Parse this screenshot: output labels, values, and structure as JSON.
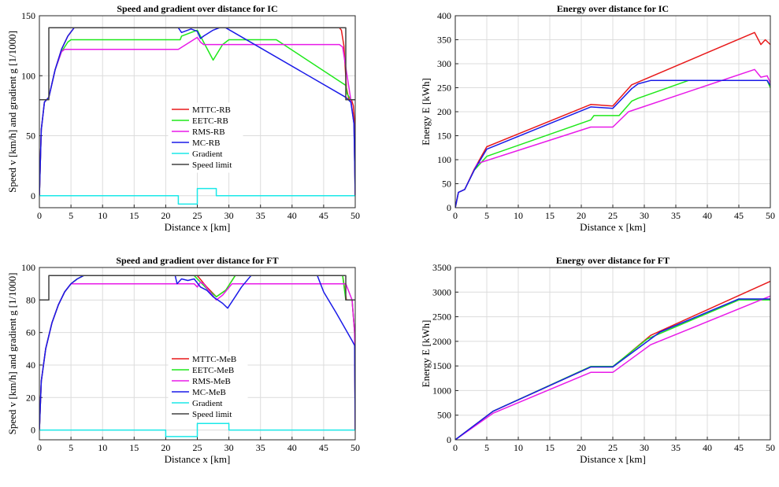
{
  "chart_data": [
    {
      "id": "ic-speed",
      "type": "line",
      "title": "Speed and gradient over distance for IC",
      "xlabel": "Distance x [km]",
      "ylabel": "Speed v [km/h] and gradient g [1/1000]",
      "xlim": [
        0,
        50
      ],
      "ylim": [
        -10,
        150
      ],
      "xticks": [
        "0",
        "5",
        "10",
        "15",
        "20",
        "25",
        "30",
        "35",
        "40",
        "45",
        "50"
      ],
      "yticks": [
        "0",
        "50",
        "100",
        "150"
      ],
      "grid": true,
      "legend": "center",
      "series": [
        {
          "name": "MTTC-RB",
          "color": "#e8191a",
          "x": [
            0,
            0.3,
            0.8,
            1.5,
            2.5,
            3.5,
            4.5,
            5.5,
            47.5,
            47.8,
            48.2,
            48.6,
            49,
            49.4,
            49.7,
            49.9,
            50
          ],
          "y": [
            0,
            55,
            78,
            82,
            105,
            122,
            133,
            140,
            140,
            138,
            125,
            90,
            80,
            80,
            75,
            60,
            0
          ]
        },
        {
          "name": "EETC-RB",
          "color": "#1ee81a",
          "x": [
            0,
            0.3,
            0.8,
            1.5,
            2.5,
            3.5,
            4.5,
            5,
            22.3,
            22.5,
            25,
            26,
            27.5,
            29,
            30,
            37.5,
            48.5,
            48.7,
            49.3,
            49.8,
            50
          ],
          "y": [
            0,
            55,
            78,
            82,
            105,
            120,
            128,
            130,
            130,
            133,
            138,
            128,
            113,
            126,
            130,
            130,
            92,
            85,
            80,
            60,
            0
          ]
        },
        {
          "name": "RMS-RB",
          "color": "#e81ae8",
          "x": [
            0,
            0.3,
            0.8,
            1.5,
            2.5,
            3.5,
            4,
            22,
            25,
            25.5,
            26,
            47.5,
            48,
            49.3,
            49.8,
            50
          ],
          "y": [
            0,
            55,
            78,
            82,
            105,
            120,
            122,
            122,
            132,
            128,
            126,
            126,
            124,
            80,
            60,
            0
          ]
        },
        {
          "name": "MC-RB",
          "color": "#1a1ae8",
          "x": [
            0,
            0.3,
            0.8,
            1.5,
            2.5,
            3.5,
            4.5,
            5.5,
            22,
            22.5,
            24,
            25,
            25.5,
            26,
            27.5,
            28.5,
            29.5,
            48.5,
            49.3,
            49.8,
            50
          ],
          "y": [
            0,
            55,
            78,
            82,
            105,
            122,
            133,
            140,
            140,
            136,
            139,
            137,
            131,
            133,
            138,
            140,
            140,
            82,
            78,
            60,
            0
          ]
        },
        {
          "name": "Gradient",
          "color": "#1ae8e8",
          "x": [
            0,
            22,
            22,
            25,
            25,
            28,
            28,
            50
          ],
          "y": [
            0,
            0,
            -7,
            -7,
            6,
            6,
            0,
            0
          ]
        },
        {
          "name": "Speed limit",
          "color": "#404040",
          "x": [
            0,
            1.5,
            1.5,
            48.5,
            48.5,
            50
          ],
          "y": [
            80,
            80,
            140,
            140,
            80,
            80
          ]
        }
      ]
    },
    {
      "id": "ic-energy",
      "type": "line",
      "title": "Energy over distance for IC",
      "xlabel": "Distance x [km]",
      "ylabel": "Energy E [kWh]",
      "xlim": [
        0,
        50
      ],
      "ylim": [
        0,
        400
      ],
      "xticks": [
        "0",
        "5",
        "10",
        "15",
        "20",
        "25",
        "30",
        "35",
        "40",
        "45",
        "50"
      ],
      "yticks": [
        "0",
        "50",
        "100",
        "150",
        "200",
        "250",
        "300",
        "350",
        "400"
      ],
      "grid": true,
      "series": [
        {
          "name": "MTTC-RB",
          "color": "#e8191a",
          "x": [
            0,
            0.5,
            1.5,
            3,
            5,
            21.5,
            25,
            28,
            47.5,
            48.5,
            49.2,
            50
          ],
          "y": [
            0,
            32,
            38,
            80,
            127,
            215,
            212,
            256,
            365,
            340,
            350,
            340
          ]
        },
        {
          "name": "EETC-RB",
          "color": "#1ee81a",
          "x": [
            0,
            0.5,
            1.5,
            3,
            5,
            21.5,
            22,
            26,
            28,
            29,
            37,
            49.5,
            50
          ],
          "y": [
            0,
            32,
            38,
            78,
            107,
            183,
            192,
            192,
            222,
            228,
            265,
            265,
            250
          ]
        },
        {
          "name": "RMS-RB",
          "color": "#e81ae8",
          "x": [
            0,
            0.5,
            1.5,
            3.5,
            21.5,
            25,
            27.5,
            47.5,
            48.5,
            49.5,
            50
          ],
          "y": [
            0,
            32,
            38,
            92,
            168,
            168,
            200,
            288,
            272,
            275,
            260
          ]
        },
        {
          "name": "MC-RB",
          "color": "#1a1ae8",
          "x": [
            0,
            0.5,
            1.5,
            3,
            5,
            21.5,
            25,
            28,
            29,
            31,
            49.5,
            50
          ],
          "y": [
            0,
            32,
            38,
            78,
            122,
            210,
            207,
            248,
            258,
            265,
            265,
            255
          ]
        }
      ]
    },
    {
      "id": "ft-speed",
      "type": "line",
      "title": "Speed and gradient over distance for FT",
      "xlabel": "Distance x [km]",
      "ylabel": "Speed v [km/h] and gradient g [1/1000]",
      "xlim": [
        0,
        50
      ],
      "ylim": [
        -6,
        100
      ],
      "xticks": [
        "0",
        "5",
        "10",
        "15",
        "20",
        "25",
        "30",
        "35",
        "40",
        "45",
        "50"
      ],
      "yticks": [
        "0",
        "20",
        "40",
        "60",
        "80",
        "100"
      ],
      "grid": true,
      "legend": "center",
      "series": [
        {
          "name": "MTTC-MeB",
          "color": "#e8191a",
          "x": [
            0,
            0.3,
            1,
            2,
            3,
            4,
            5,
            6,
            7,
            25,
            26.5,
            28,
            29.5,
            31,
            48,
            48.6,
            49.5,
            49.9,
            50
          ],
          "y": [
            0,
            30,
            50,
            66,
            77,
            85,
            90,
            93,
            95,
            95,
            88,
            82,
            86,
            95,
            95,
            80,
            80,
            60,
            0
          ]
        },
        {
          "name": "EETC-MeB",
          "color": "#1ee81a",
          "x": [
            0,
            0.3,
            1,
            2,
            3,
            4,
            5,
            6,
            7,
            24.5,
            26.5,
            28,
            29.5,
            31,
            48,
            48.5,
            49.5,
            49.9,
            50
          ],
          "y": [
            0,
            30,
            50,
            66,
            77,
            85,
            90,
            93,
            95,
            95,
            87,
            82,
            86,
            95,
            95,
            80,
            80,
            60,
            0
          ]
        },
        {
          "name": "RMS-MeB",
          "color": "#e81ae8",
          "x": [
            0,
            0.3,
            1,
            2,
            3,
            4,
            5,
            6,
            20,
            24.5,
            25,
            25.5,
            26,
            27,
            28,
            29,
            30.5,
            47.5,
            48.5,
            49.5,
            49.9,
            50
          ],
          "y": [
            0,
            30,
            50,
            66,
            77,
            85,
            90,
            90,
            90,
            90,
            88,
            91,
            90,
            85,
            80,
            83,
            90,
            90,
            90,
            80,
            60,
            0
          ]
        },
        {
          "name": "MC-MeB",
          "color": "#1a1ae8",
          "x": [
            0,
            0.3,
            1,
            2,
            3,
            4,
            5,
            6,
            7,
            21.5,
            21.8,
            22.5,
            23.5,
            24.5,
            25.5,
            26.5,
            27.5,
            29,
            29.8,
            31,
            32,
            33.5,
            44,
            45,
            47,
            49.5,
            49.9,
            50
          ],
          "y": [
            0,
            30,
            50,
            66,
            77,
            85,
            90,
            93,
            95,
            95,
            90,
            93,
            92,
            93,
            88,
            86,
            82,
            78,
            75,
            82,
            88,
            95,
            95,
            85,
            72,
            55,
            52,
            0
          ]
        },
        {
          "name": "Gradient",
          "color": "#1ae8e8",
          "x": [
            0,
            20,
            20,
            25,
            25,
            30,
            30,
            50
          ],
          "y": [
            0,
            0,
            -4,
            -4,
            4,
            4,
            0,
            0
          ]
        },
        {
          "name": "Speed limit",
          "color": "#404040",
          "x": [
            0,
            1.5,
            1.5,
            48.5,
            48.5,
            50
          ],
          "y": [
            80,
            80,
            95,
            95,
            80,
            80
          ]
        }
      ]
    },
    {
      "id": "ft-energy",
      "type": "line",
      "title": "Energy over distance for FT",
      "xlabel": "Distance x [km]",
      "ylabel": "Energy E [kWh]",
      "xlim": [
        0,
        50
      ],
      "ylim": [
        0,
        3500
      ],
      "xticks": [
        "0",
        "5",
        "10",
        "15",
        "20",
        "25",
        "30",
        "35",
        "40",
        "45",
        "50"
      ],
      "yticks": [
        "0",
        "500",
        "1000",
        "1500",
        "2000",
        "2500",
        "3000",
        "3500"
      ],
      "grid": true,
      "series": [
        {
          "name": "MTTC-MeB",
          "color": "#e8191a",
          "x": [
            0,
            6,
            21.5,
            25,
            31,
            50
          ],
          "y": [
            0,
            580,
            1480,
            1480,
            2120,
            3220
          ]
        },
        {
          "name": "EETC-MeB",
          "color": "#1ee81a",
          "x": [
            0,
            6,
            21.5,
            25,
            30.5,
            45,
            50
          ],
          "y": [
            0,
            580,
            1490,
            1490,
            2050,
            2840,
            2840
          ]
        },
        {
          "name": "RMS-MeB",
          "color": "#e81ae8",
          "x": [
            0,
            6,
            21.5,
            25,
            31,
            50
          ],
          "y": [
            0,
            540,
            1370,
            1370,
            1930,
            2920
          ]
        },
        {
          "name": "MC-MeB",
          "color": "#1a1ae8",
          "x": [
            0,
            6,
            21.5,
            25,
            32.5,
            45,
            50
          ],
          "y": [
            0,
            580,
            1480,
            1480,
            2190,
            2860,
            2860
          ]
        }
      ]
    }
  ]
}
